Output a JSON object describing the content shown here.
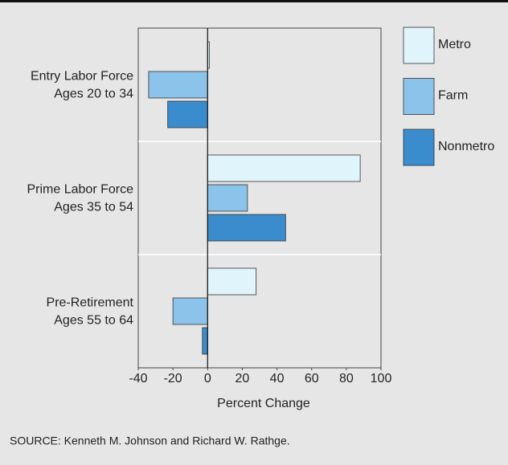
{
  "chart_data": {
    "type": "barh",
    "categories": [
      [
        "Entry Labor Force",
        "Ages 20 to 34"
      ],
      [
        "Prime Labor Force",
        "Ages 35 to 54"
      ],
      [
        "Pre-Retirement",
        "Ages 55 to 64"
      ]
    ],
    "series": [
      {
        "name": "Metro",
        "color": "#e0f4fc",
        "values": [
          1,
          88,
          28
        ]
      },
      {
        "name": "Farm",
        "color": "#8cc3ea",
        "values": [
          -34,
          23,
          -20
        ]
      },
      {
        "name": "Nonmetro",
        "color": "#3a8ccc",
        "values": [
          -23,
          45,
          -3
        ]
      }
    ],
    "xlim": [
      -40,
      100
    ],
    "xticks": [
      -40,
      -20,
      0,
      20,
      40,
      60,
      80,
      100
    ],
    "xlabel": "Percent Change",
    "grid": false,
    "legend": "right",
    "source": "SOURCE: Kenneth M. Johnson and Richard W. Rathge."
  }
}
